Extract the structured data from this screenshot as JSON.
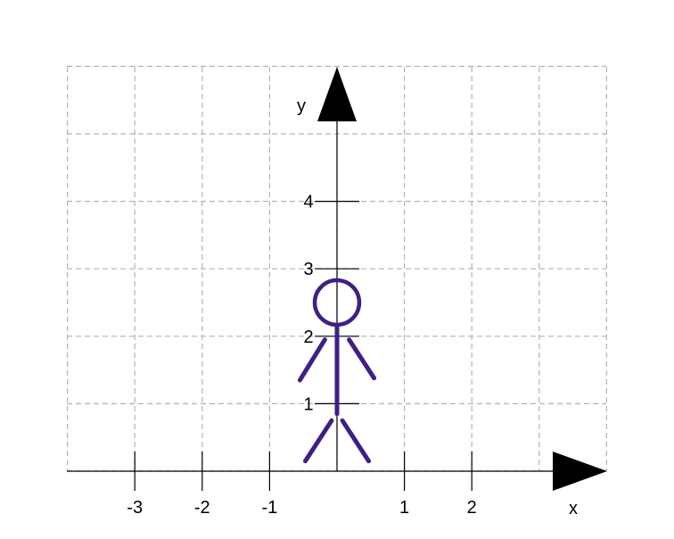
{
  "diagram": {
    "x_range": [
      -4,
      4
    ],
    "y_range": [
      0,
      6
    ],
    "grid": "dashed",
    "axis_labels": {
      "x": "x",
      "y": "y"
    },
    "x_ticks": [
      {
        "value": -3,
        "label": "-3"
      },
      {
        "value": -2,
        "label": "-2"
      },
      {
        "value": -1,
        "label": "-1"
      },
      {
        "value": 1,
        "label": "1"
      },
      {
        "value": 2,
        "label": "2"
      }
    ],
    "y_ticks": [
      {
        "value": 1,
        "label": "1"
      },
      {
        "value": 2,
        "label": "2"
      },
      {
        "value": 3,
        "label": "3"
      },
      {
        "value": 4,
        "label": "4"
      }
    ],
    "colors": {
      "grid": "#b3b3b3",
      "axes": "#000000",
      "figure": "#3f1f86"
    },
    "stick_figure": {
      "head": {
        "cx": 0,
        "cy": 2.5,
        "r": 0.33
      },
      "segments": [
        {
          "name": "body",
          "x1": 0,
          "y1": 2.15,
          "x2": 0,
          "y2": 0.85
        },
        {
          "name": "left-arm",
          "x1": -0.18,
          "y1": 1.95,
          "x2": -0.55,
          "y2": 1.35
        },
        {
          "name": "right-arm",
          "x1": 0.18,
          "y1": 1.95,
          "x2": 0.55,
          "y2": 1.38
        },
        {
          "name": "left-leg",
          "x1": -0.08,
          "y1": 0.75,
          "x2": -0.47,
          "y2": 0.15
        },
        {
          "name": "right-leg",
          "x1": 0.08,
          "y1": 0.75,
          "x2": 0.47,
          "y2": 0.15
        }
      ]
    }
  }
}
